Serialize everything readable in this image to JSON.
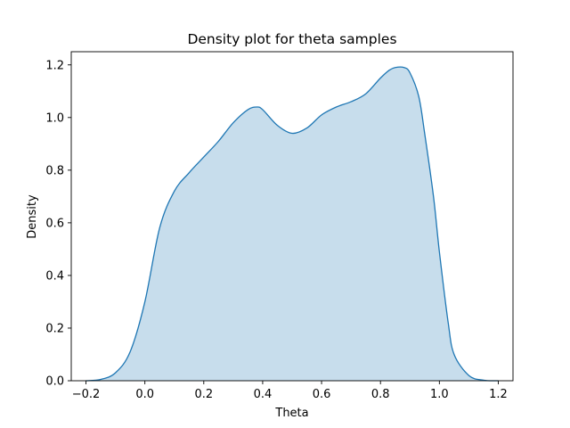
{
  "chart_data": {
    "type": "area",
    "title": "Density plot for theta samples",
    "xlabel": "Theta",
    "ylabel": "Density",
    "xlim": [
      -0.25,
      1.25
    ],
    "ylim": [
      0,
      1.25
    ],
    "xticks": [
      -0.2,
      0.0,
      0.2,
      0.4,
      0.6,
      0.8,
      1.0,
      1.2
    ],
    "yticks": [
      0.0,
      0.2,
      0.4,
      0.6,
      0.8,
      1.0,
      1.2
    ],
    "xtick_labels": [
      "−0.2",
      "0.0",
      "0.2",
      "0.4",
      "0.6",
      "0.8",
      "1.0",
      "1.2"
    ],
    "ytick_labels": [
      "0.0",
      "0.2",
      "0.4",
      "0.6",
      "0.8",
      "1.0",
      "1.2"
    ],
    "grid": false,
    "colors": {
      "line": "#1f77b4",
      "fill": "#1f77b4",
      "fill_opacity": 0.25
    },
    "series": [
      {
        "x": [
          -0.2,
          -0.15,
          -0.1,
          -0.05,
          0.0,
          0.05,
          0.1,
          0.15,
          0.2,
          0.25,
          0.3,
          0.35,
          0.38,
          0.4,
          0.45,
          0.5,
          0.55,
          0.6,
          0.65,
          0.7,
          0.75,
          0.8,
          0.83,
          0.85,
          0.88,
          0.9,
          0.93,
          0.95,
          0.98,
          1.0,
          1.03,
          1.05,
          1.1,
          1.15,
          1.2
        ],
        "y": [
          0.0,
          0.005,
          0.03,
          0.11,
          0.3,
          0.58,
          0.72,
          0.79,
          0.85,
          0.91,
          0.98,
          1.03,
          1.04,
          1.03,
          0.97,
          0.94,
          0.96,
          1.01,
          1.04,
          1.06,
          1.09,
          1.15,
          1.18,
          1.19,
          1.19,
          1.17,
          1.08,
          0.94,
          0.7,
          0.49,
          0.22,
          0.1,
          0.02,
          0.002,
          0.0
        ]
      }
    ]
  }
}
